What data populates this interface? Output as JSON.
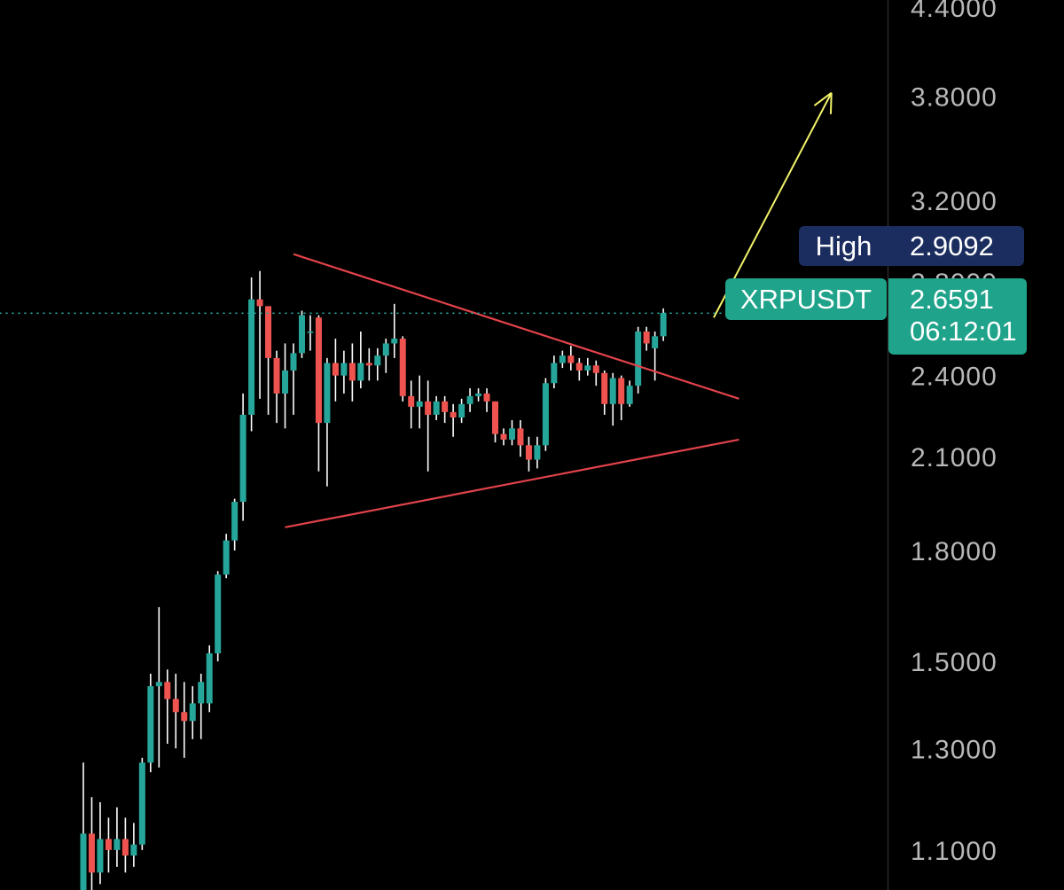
{
  "chart_data": {
    "type": "candlestick",
    "symbol": "XRPUSDT",
    "ylim": [
      1.03,
      4.45
    ],
    "y_scale": "log",
    "y_ticks": [
      "4.4000",
      "3.8000",
      "3.2000",
      "2.8000",
      "2.4000",
      "2.1000",
      "1.8000",
      "1.5000",
      "1.3000",
      "1.1000"
    ],
    "high": {
      "label": "High",
      "value": "2.9092"
    },
    "last": {
      "price": "2.6591",
      "countdown": "06:12:01",
      "value": 2.6591
    },
    "colors": {
      "up": "#26a69a",
      "down": "#ef5350",
      "trendline": "#e2434b",
      "arrow": "#f3f36a",
      "price_line": "#26a69a",
      "background": "#000000"
    },
    "trendlines": [
      {
        "name": "upper",
        "from": [
          25,
          2.93
        ],
        "to": [
          78,
          2.31
        ]
      },
      {
        "name": "lower",
        "from": [
          24,
          1.87
        ],
        "to": [
          78,
          2.16
        ]
      }
    ],
    "arrow": {
      "from": [
        75,
        2.64
      ],
      "to": [
        89,
        3.82
      ]
    },
    "candles": [
      [
        1.0,
        1.13,
        1.27,
        0.98
      ],
      [
        1.13,
        1.06,
        1.2,
        1.03
      ],
      [
        1.06,
        1.12,
        1.19,
        1.04
      ],
      [
        1.12,
        1.1,
        1.16,
        1.06
      ],
      [
        1.1,
        1.12,
        1.18,
        1.07
      ],
      [
        1.12,
        1.09,
        1.16,
        1.06
      ],
      [
        1.09,
        1.11,
        1.15,
        1.07
      ],
      [
        1.11,
        1.27,
        1.28,
        1.1
      ],
      [
        1.27,
        1.44,
        1.47,
        1.25
      ],
      [
        1.44,
        1.45,
        1.64,
        1.26
      ],
      [
        1.45,
        1.41,
        1.48,
        1.31
      ],
      [
        1.41,
        1.38,
        1.47,
        1.3
      ],
      [
        1.38,
        1.36,
        1.45,
        1.28
      ],
      [
        1.36,
        1.4,
        1.44,
        1.32
      ],
      [
        1.4,
        1.45,
        1.47,
        1.32
      ],
      [
        1.4,
        1.52,
        1.54,
        1.38
      ],
      [
        1.52,
        1.73,
        1.74,
        1.5
      ],
      [
        1.73,
        1.83,
        1.85,
        1.72
      ],
      [
        1.83,
        1.95,
        1.96,
        1.8
      ],
      [
        1.95,
        2.25,
        2.33,
        1.89
      ],
      [
        2.25,
        2.72,
        2.82,
        2.19
      ],
      [
        2.72,
        2.69,
        2.85,
        2.31
      ],
      [
        2.69,
        2.47,
        2.6,
        2.25
      ],
      [
        2.47,
        2.33,
        2.5,
        2.22
      ],
      [
        2.33,
        2.42,
        2.53,
        2.2
      ],
      [
        2.42,
        2.49,
        2.53,
        2.25
      ],
      [
        2.49,
        2.65,
        2.67,
        2.47
      ],
      [
        2.58,
        2.58,
        2.65,
        2.5
      ],
      [
        2.64,
        2.22,
        2.65,
        2.05
      ],
      [
        2.22,
        2.45,
        2.47,
        2.0
      ],
      [
        2.45,
        2.4,
        2.55,
        2.3
      ],
      [
        2.4,
        2.45,
        2.5,
        2.33
      ],
      [
        2.45,
        2.38,
        2.53,
        2.3
      ],
      [
        2.38,
        2.45,
        2.58,
        2.35
      ],
      [
        2.45,
        2.44,
        2.51,
        2.38
      ],
      [
        2.44,
        2.48,
        2.51,
        2.38
      ],
      [
        2.48,
        2.53,
        2.55,
        2.41
      ],
      [
        2.53,
        2.55,
        2.7,
        2.47
      ],
      [
        2.55,
        2.32,
        2.56,
        2.3
      ],
      [
        2.32,
        2.28,
        2.38,
        2.2
      ],
      [
        2.28,
        2.3,
        2.4,
        2.2
      ],
      [
        2.3,
        2.25,
        2.38,
        2.05
      ],
      [
        2.25,
        2.3,
        2.32,
        2.23
      ],
      [
        2.3,
        2.26,
        2.32,
        2.22
      ],
      [
        2.26,
        2.24,
        2.29,
        2.17
      ],
      [
        2.24,
        2.29,
        2.31,
        2.22
      ],
      [
        2.29,
        2.32,
        2.35,
        2.26
      ],
      [
        2.32,
        2.33,
        2.35,
        2.3
      ],
      [
        2.33,
        2.3,
        2.35,
        2.26
      ],
      [
        2.3,
        2.18,
        2.3,
        2.15
      ],
      [
        2.18,
        2.16,
        2.2,
        2.14
      ],
      [
        2.16,
        2.2,
        2.23,
        2.14
      ],
      [
        2.2,
        2.14,
        2.23,
        2.1
      ],
      [
        2.14,
        2.09,
        2.17,
        2.05
      ],
      [
        2.09,
        2.14,
        2.17,
        2.06
      ],
      [
        2.14,
        2.37,
        2.39,
        2.12
      ],
      [
        2.37,
        2.45,
        2.48,
        2.35
      ],
      [
        2.45,
        2.48,
        2.5,
        2.43
      ],
      [
        2.48,
        2.45,
        2.52,
        2.42
      ],
      [
        2.45,
        2.42,
        2.47,
        2.38
      ],
      [
        2.42,
        2.44,
        2.47,
        2.4
      ],
      [
        2.44,
        2.41,
        2.46,
        2.36
      ],
      [
        2.41,
        2.29,
        2.42,
        2.25
      ],
      [
        2.29,
        2.39,
        2.41,
        2.21
      ],
      [
        2.39,
        2.29,
        2.4,
        2.23
      ],
      [
        2.29,
        2.36,
        2.38,
        2.28
      ],
      [
        2.36,
        2.58,
        2.6,
        2.33
      ],
      [
        2.58,
        2.53,
        2.6,
        2.5
      ],
      [
        2.51,
        2.56,
        2.58,
        2.38
      ],
      [
        2.56,
        2.66,
        2.68,
        2.54
      ]
    ]
  }
}
